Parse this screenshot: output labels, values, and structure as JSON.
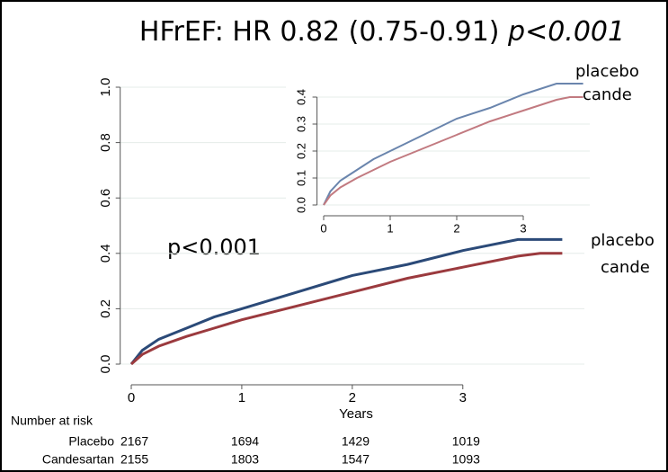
{
  "chart_data": [
    {
      "type": "line",
      "title": "HFrEF: HR 0.82 (0.75-0.91)",
      "title_p": "p<0.001",
      "annotation": "p<0.001",
      "xlabel": "Years",
      "xlim": [
        -0.1,
        4.1
      ],
      "xticks": [
        0,
        1,
        2,
        3
      ],
      "ylim": [
        -0.05,
        1.05
      ],
      "yticks": [
        {
          "value": 0,
          "label": "0.0"
        },
        0.2,
        0.4,
        0.6,
        0.8,
        {
          "value": 1,
          "label": "1.0"
        }
      ],
      "grid": true,
      "series": [
        {
          "name": "placebo",
          "color": "#2b4a78",
          "x": [
            0,
            0.1,
            0.25,
            0.5,
            0.75,
            1,
            1.5,
            2,
            2.5,
            3,
            3.5,
            3.7,
            3.9
          ],
          "values": [
            0,
            0.05,
            0.09,
            0.13,
            0.17,
            0.2,
            0.26,
            0.32,
            0.36,
            0.41,
            0.45,
            0.45,
            0.45
          ]
        },
        {
          "name": "cande",
          "color": "#9b3a3e",
          "x": [
            0,
            0.1,
            0.25,
            0.5,
            0.75,
            1,
            1.5,
            2,
            2.5,
            3,
            3.5,
            3.7,
            3.9
          ],
          "values": [
            0,
            0.035,
            0.065,
            0.1,
            0.13,
            0.16,
            0.21,
            0.26,
            0.31,
            0.35,
            0.39,
            0.4,
            0.4
          ]
        }
      ],
      "number_at_risk": {
        "title": "Number at risk",
        "rows": [
          {
            "label": "Placebo",
            "values": [
              2167,
              1694,
              1429,
              1019
            ]
          },
          {
            "label": "Candesartan",
            "values": [
              2155,
              1803,
              1547,
              1093
            ]
          }
        ]
      }
    },
    {
      "type": "line",
      "xlim": [
        -0.1,
        4.0
      ],
      "xticks": [
        0,
        1,
        2,
        3
      ],
      "ylim": [
        -0.03,
        0.47
      ],
      "yticks": [
        {
          "value": 0,
          "label": "0.0"
        },
        0.1,
        0.2,
        0.3,
        0.4
      ],
      "grid": true,
      "series": [
        {
          "name": "placebo",
          "color": "#6a85ad",
          "x": [
            0,
            0.1,
            0.25,
            0.5,
            0.75,
            1,
            1.5,
            2,
            2.5,
            3,
            3.5,
            3.7,
            3.9
          ],
          "values": [
            0,
            0.05,
            0.09,
            0.13,
            0.17,
            0.2,
            0.26,
            0.32,
            0.36,
            0.41,
            0.45,
            0.45,
            0.45
          ]
        },
        {
          "name": "cande",
          "color": "#c27a80",
          "x": [
            0,
            0.1,
            0.25,
            0.5,
            0.75,
            1,
            1.5,
            2,
            2.5,
            3,
            3.5,
            3.7,
            3.9
          ],
          "values": [
            0,
            0.035,
            0.065,
            0.1,
            0.13,
            0.16,
            0.21,
            0.26,
            0.31,
            0.35,
            0.39,
            0.4,
            0.4
          ]
        }
      ]
    }
  ]
}
